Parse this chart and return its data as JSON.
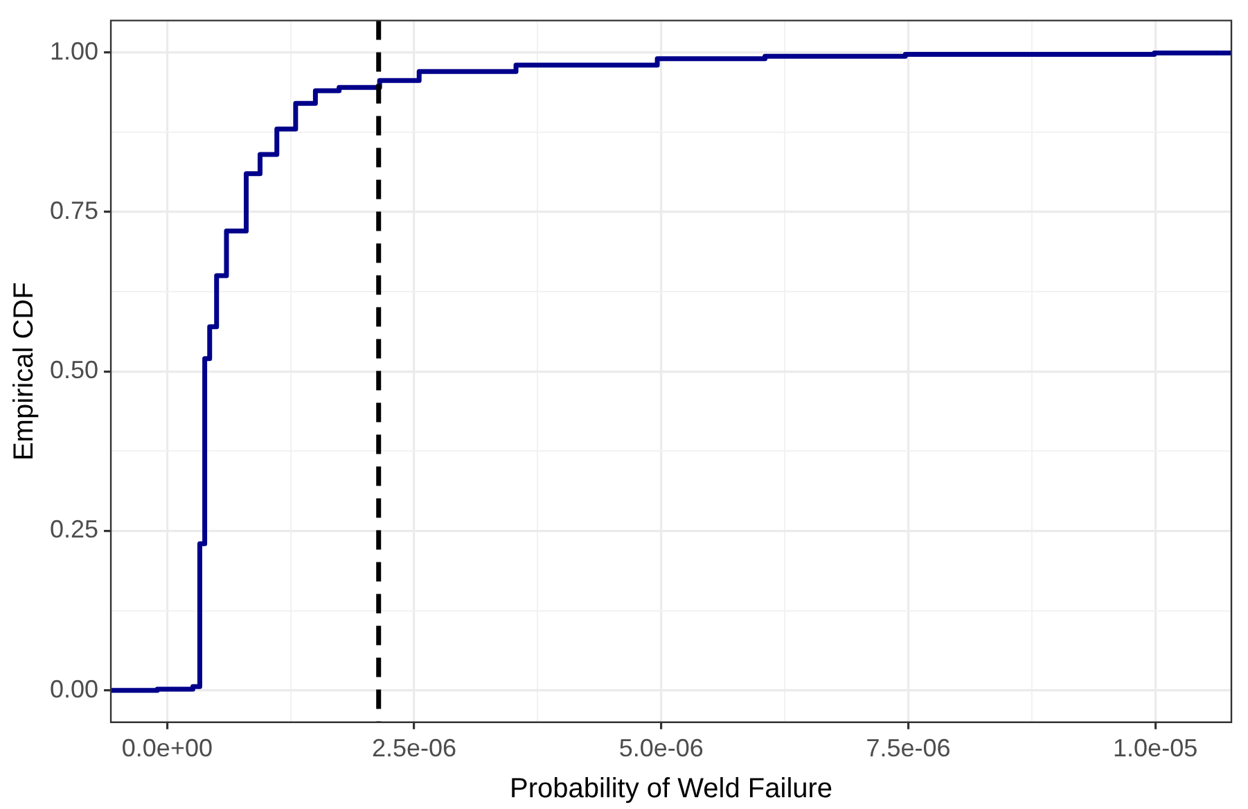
{
  "chart_data": {
    "type": "step",
    "xlabel": "Probability of Weld Failure",
    "ylabel": "Empirical CDF",
    "series": [
      {
        "color": "#00008b",
        "x": [
          -5.7e-07,
          -1e-07,
          2.6e-07,
          3.3e-07,
          3.8e-07,
          4.3e-07,
          5e-07,
          6e-07,
          8e-07,
          9.4e-07,
          1.11e-06,
          1.3e-06,
          1.5e-06,
          1.74e-06,
          1.89e-06,
          2.15e-06,
          2.55e-06,
          3.53e-06,
          4.96e-06,
          6.05e-06,
          7.47e-06,
          9.99e-06,
          1.077e-05
        ],
        "values": [
          0,
          0.002,
          0.006,
          0.23,
          0.52,
          0.57,
          0.65,
          0.72,
          0.81,
          0.84,
          0.88,
          0.92,
          0.94,
          0.945,
          0.945,
          0.956,
          0.97,
          0.98,
          0.99,
          0.994,
          0.997,
          0.999,
          1.0
        ]
      }
    ],
    "xlim": [
      -5.7e-07,
      1.077e-05
    ],
    "ylim": [
      -0.05,
      1.05
    ],
    "xticks": [
      {
        "value": 0,
        "label": "0.0e+00"
      },
      {
        "value": 1.25e-06,
        "label": null
      },
      {
        "value": 2.5e-06,
        "label": "2.5e-06"
      },
      {
        "value": 3.75e-06,
        "label": null
      },
      {
        "value": 5e-06,
        "label": "5.0e-06"
      },
      {
        "value": 6.25e-06,
        "label": null
      },
      {
        "value": 7.5e-06,
        "label": "7.5e-06"
      },
      {
        "value": 8.75e-06,
        "label": null
      },
      {
        "value": 1e-05,
        "label": "1.0e-05"
      }
    ],
    "yticks": [
      {
        "value": 0,
        "label": "0.00"
      },
      {
        "value": 0.125,
        "label": null
      },
      {
        "value": 0.25,
        "label": "0.25"
      },
      {
        "value": 0.375,
        "label": null
      },
      {
        "value": 0.5,
        "label": "0.50"
      },
      {
        "value": 0.625,
        "label": null
      },
      {
        "value": 0.75,
        "label": "0.75"
      },
      {
        "value": 0.875,
        "label": null
      },
      {
        "value": 1,
        "label": "1.00"
      }
    ],
    "ref_lines": [
      {
        "axis": "x",
        "value": 2.14e-06,
        "color": "#000000",
        "line_style": "dashed"
      }
    ],
    "grid": true,
    "legend": false,
    "marker": "none",
    "line_style": "solid"
  }
}
